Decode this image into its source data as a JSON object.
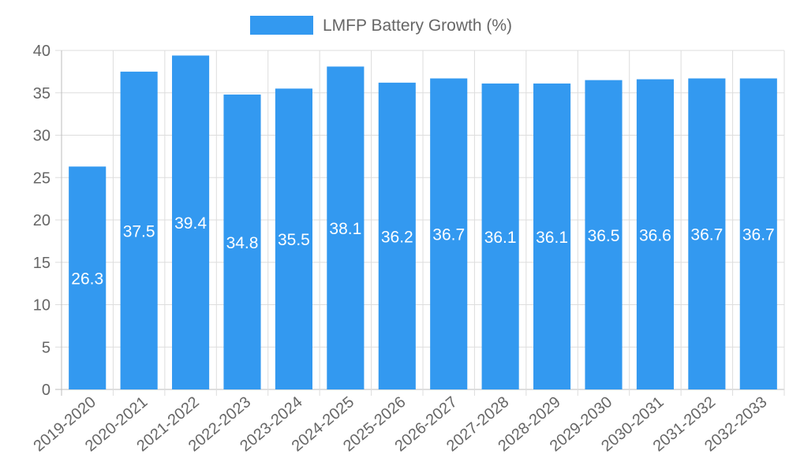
{
  "chart_data": {
    "type": "bar",
    "categories": [
      "2019-2020",
      "2020-2021",
      "2021-2022",
      "2022-2023",
      "2023-2024",
      "2024-2025",
      "2025-2026",
      "2026-2027",
      "2027-2028",
      "2028-2029",
      "2029-2030",
      "2030-2031",
      "2031-2032",
      "2032-2033"
    ],
    "series": [
      {
        "name": "LMFP Battery Growth (%)",
        "values": [
          26.3,
          37.5,
          39.4,
          34.8,
          35.5,
          38.1,
          36.2,
          36.7,
          36.1,
          36.1,
          36.5,
          36.6,
          36.7,
          36.7
        ],
        "color": "#3399f0"
      }
    ],
    "data_labels": [
      "26.3",
      "37.5",
      "39.4",
      "34.8",
      "35.5",
      "38.1",
      "36.2",
      "36.7",
      "36.1",
      "36.1",
      "36.5",
      "36.6",
      "36.7",
      "36.7"
    ],
    "y_ticks": [
      "0",
      "5",
      "10",
      "15",
      "20",
      "25",
      "30",
      "35",
      "40"
    ],
    "ylim": [
      0,
      40
    ],
    "grid": true,
    "legend_position": "top-center",
    "title": "",
    "xlabel": "",
    "ylabel": ""
  }
}
